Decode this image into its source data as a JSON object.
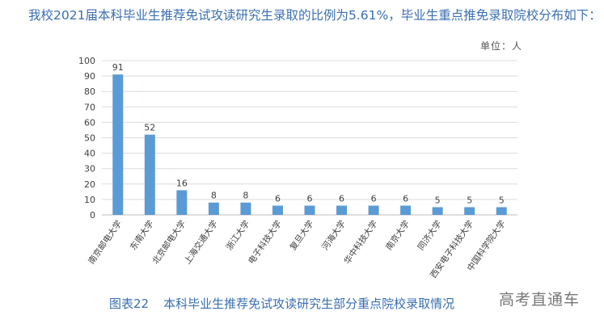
{
  "intro_text": "我校2021届本科毕业生推荐免试攻读研究生录取的比例为5.61%，毕业生重点推免录取院校分布如下：",
  "unit_label": "单位：人",
  "caption": {
    "number": "图表22",
    "title": "本科毕业生推荐免试攻读研究生部分重点院校录取情况"
  },
  "watermark": "高考直通车",
  "chart_data": {
    "type": "bar",
    "title": "",
    "xlabel": "",
    "ylabel": "",
    "ylim": [
      0,
      100
    ],
    "yticks": [
      0,
      10,
      20,
      30,
      40,
      50,
      60,
      70,
      80,
      90,
      100
    ],
    "grid": true,
    "bar_color": "#5b9bd5",
    "categories": [
      "南京邮电大学",
      "东南大学",
      "北京邮电大学",
      "上海交通大学",
      "浙江大学",
      "电子科技大学",
      "复旦大学",
      "河海大学",
      "华中科技大学",
      "南京大学",
      "同济大学",
      "西安电子科技大学",
      "中国科学院大学"
    ],
    "values": [
      91,
      52,
      16,
      8,
      8,
      6,
      6,
      6,
      6,
      6,
      5,
      5,
      5
    ]
  }
}
